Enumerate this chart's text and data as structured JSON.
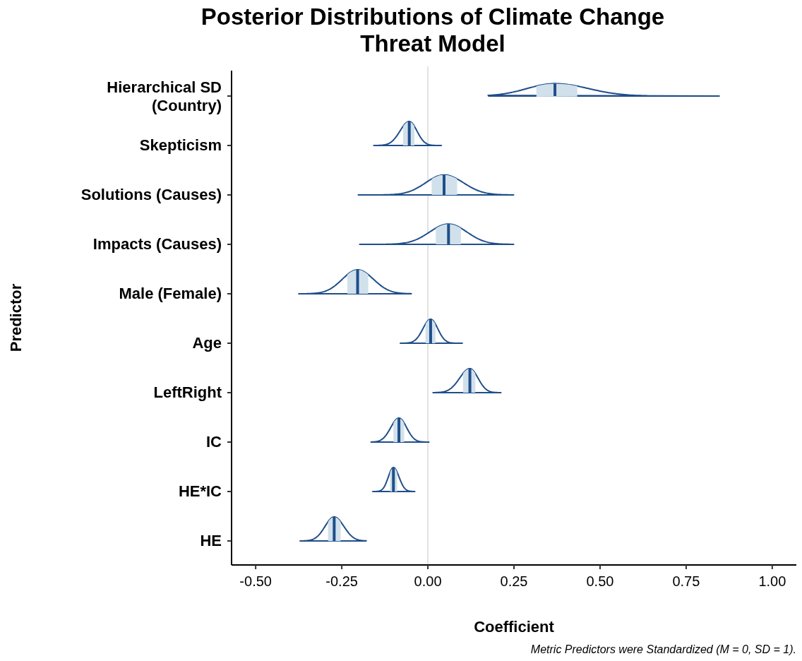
{
  "chart_data": {
    "type": "box",
    "orientation": "horizontal",
    "title": "Posterior Distributions of Climate Change Threat Model",
    "xlabel": "Coefficient",
    "ylabel": "Predictor",
    "annotations": [
      "Metric Predictors were Standardized (M = 0, SD = 1)."
    ],
    "categories": [
      "Hierarchical SD\n(Country)",
      "Skepticism",
      "Solutions (Causes)",
      "Impacts (Causes)",
      "Male (Female)",
      "Age",
      "LeftRight",
      "IC",
      "HE*IC",
      "HE"
    ],
    "series": [
      {
        "color": "#d1e1ec",
        "boxes": [
          {
            "low": 0.175,
            "q1": 0.315,
            "median": 0.369,
            "q3": 0.434,
            "high": 0.846
          },
          {
            "low": -0.157,
            "q1": -0.072,
            "median": -0.054,
            "q3": -0.039,
            "high": 0.039
          },
          {
            "low": -0.202,
            "q1": 0.011,
            "median": 0.047,
            "q3": 0.085,
            "high": 0.249
          },
          {
            "low": -0.198,
            "q1": 0.023,
            "median": 0.06,
            "q3": 0.096,
            "high": 0.249
          },
          {
            "low": -0.375,
            "q1": -0.234,
            "median": -0.204,
            "q3": -0.173,
            "high": -0.048
          },
          {
            "low": -0.08,
            "q1": -0.007,
            "median": 0.008,
            "q3": 0.022,
            "high": 0.1
          },
          {
            "low": 0.015,
            "q1": 0.102,
            "median": 0.122,
            "q3": 0.138,
            "high": 0.212
          },
          {
            "low": -0.165,
            "q1": -0.1,
            "median": -0.084,
            "q3": -0.069,
            "high": 0.003
          },
          {
            "low": -0.16,
            "q1": -0.11,
            "median": -0.1,
            "q3": -0.089,
            "high": -0.038
          },
          {
            "low": -0.371,
            "q1": -0.29,
            "median": -0.272,
            "q3": -0.253,
            "high": -0.179
          }
        ]
      }
    ],
    "xlim": [
      -0.57,
      1.07
    ],
    "xticks": [
      {
        "value": -0.5,
        "label": "-0.50"
      },
      {
        "value": -0.25,
        "label": "-0.25"
      },
      {
        "value": 0,
        "label": "0.00"
      },
      {
        "value": 0.25,
        "label": "0.25"
      },
      {
        "value": 0.5,
        "label": "0.50"
      },
      {
        "value": 0.75,
        "label": "0.75"
      },
      {
        "value": 1,
        "label": "1.00"
      }
    ],
    "ref_lines": [
      {
        "axis": "x",
        "value": 0,
        "color": "#d9d9d9"
      }
    ],
    "grid": false
  }
}
